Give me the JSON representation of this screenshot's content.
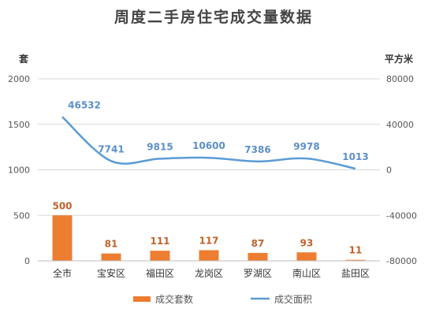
{
  "chart_data": {
    "type": "bar+line",
    "title": "周度二手房住宅成交量数据",
    "categories": [
      "全市",
      "宝安区",
      "福田区",
      "龙岗区",
      "罗湖区",
      "南山区",
      "盐田区"
    ],
    "left_axis": {
      "unit": "套",
      "ylim": [
        0,
        2000
      ],
      "ticks": [
        "0",
        "500",
        "1000",
        "1500",
        "2000"
      ]
    },
    "right_axis": {
      "unit": "平方米",
      "ylim": [
        -80000,
        80000
      ],
      "ticks": [
        "-80000",
        "-40000",
        "0",
        "40000",
        "80000"
      ]
    },
    "series": [
      {
        "name": "成交套数",
        "type": "bar",
        "axis": "left",
        "color": "#ed7d31",
        "values": [
          500,
          81,
          111,
          117,
          87,
          93,
          11
        ],
        "labels": [
          "500",
          "81",
          "111",
          "117",
          "87",
          "93",
          "11"
        ]
      },
      {
        "name": "成交面积",
        "type": "line",
        "axis": "right",
        "color": "#5b9bd5",
        "values": [
          46532,
          7741,
          9815,
          10600,
          7386,
          9978,
          1013
        ],
        "labels": [
          "46532",
          "7741",
          "9815",
          "10600",
          "7386",
          "9978",
          "1013"
        ]
      }
    ],
    "grid": true,
    "legend": "bottom"
  }
}
